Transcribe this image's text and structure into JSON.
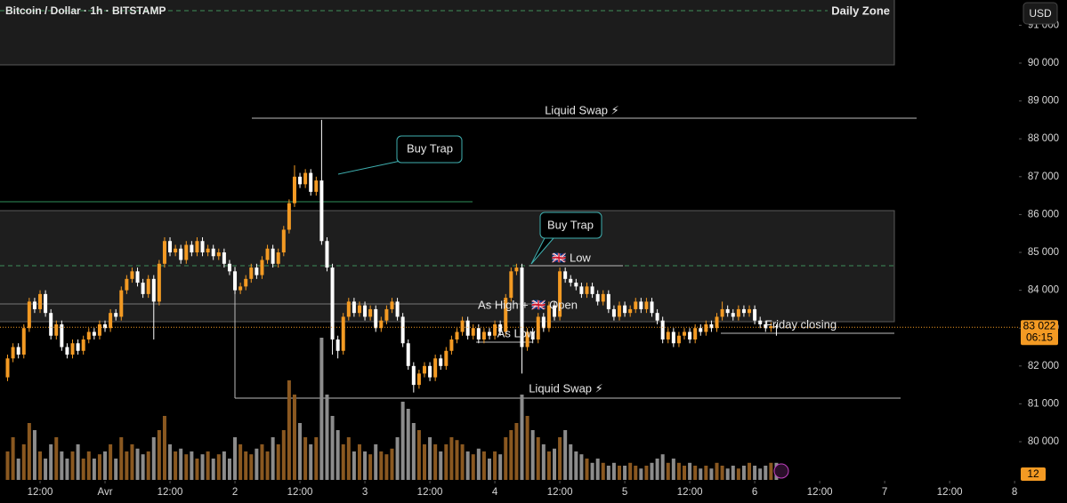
{
  "chart_data": {
    "type": "candlestick",
    "title": "Bitcoin / Dollar · 1h · BITSTAMP",
    "currency": "USD",
    "up_color": "#f39a23",
    "down_color": "#ffffff",
    "volume_up_color": "#8a5820",
    "volume_down_color": "#8c8c8c",
    "xlim": [
      -19.4,
      168.8
    ],
    "ylim": [
      78991,
      91667
    ],
    "volume_lim": [
      0,
      100
    ],
    "xticks": [
      {
        "value": -12,
        "label": "12:00"
      },
      {
        "value": 0,
        "label": "Avr"
      },
      {
        "value": 12,
        "label": "12:00"
      },
      {
        "value": 24,
        "label": "2"
      },
      {
        "value": 36,
        "label": "12:00"
      },
      {
        "value": 48,
        "label": "3"
      },
      {
        "value": 60,
        "label": "12:00"
      },
      {
        "value": 72,
        "label": "4"
      },
      {
        "value": 84,
        "label": "12:00"
      },
      {
        "value": 96,
        "label": "5"
      },
      {
        "value": 108,
        "label": "12:00"
      },
      {
        "value": 120,
        "label": "6"
      },
      {
        "value": 132,
        "label": "12:00"
      },
      {
        "value": 144,
        "label": "7"
      },
      {
        "value": 156,
        "label": "12:00"
      },
      {
        "value": 168,
        "label": "8"
      }
    ],
    "yticks": [
      {
        "value": 80000,
        "label": "80 000"
      },
      {
        "value": 81000,
        "label": "81 000"
      },
      {
        "value": 82000,
        "label": "82 000"
      },
      {
        "value": 83000,
        "label": "83 000"
      },
      {
        "value": 84000,
        "label": "84 000"
      },
      {
        "value": 85000,
        "label": "85 000"
      },
      {
        "value": 86000,
        "label": "86 000"
      },
      {
        "value": 87000,
        "label": "87 000"
      },
      {
        "value": 88000,
        "label": "88 000"
      },
      {
        "value": 89000,
        "label": "89 000"
      },
      {
        "value": 90000,
        "label": "90 000"
      },
      {
        "value": 91000,
        "label": "91 000"
      }
    ],
    "last_price_label": "83 022",
    "countdown": "06:15",
    "annotations": [
      "Daily Zone",
      "Liquid Swap ⚡",
      "Buy Trap",
      "Buy Trap",
      "🇬🇧 Low",
      "As High + 🇬🇧 Open",
      "As Low",
      "Liquid Swap ⚡",
      "Friday closing"
    ],
    "x": [
      -18,
      -17,
      -16,
      -15,
      -14,
      -13,
      -12,
      -11,
      -10,
      -9,
      -8,
      -7,
      -6,
      -5,
      -4,
      -3,
      -2,
      -1,
      0,
      1,
      2,
      3,
      4,
      5,
      6,
      7,
      8,
      9,
      10,
      11,
      12,
      13,
      14,
      15,
      16,
      17,
      18,
      19,
      20,
      21,
      22,
      23,
      24,
      25,
      26,
      27,
      28,
      29,
      30,
      31,
      32,
      33,
      34,
      35,
      36,
      37,
      38,
      39,
      40,
      41,
      42,
      43,
      44,
      45,
      46,
      47,
      48,
      49,
      50,
      51,
      52,
      53,
      54,
      55,
      56,
      57,
      58,
      59,
      60,
      61,
      62,
      63,
      64,
      65,
      66,
      67,
      68,
      69,
      70,
      71,
      72,
      73,
      74,
      75,
      76,
      77,
      78,
      79,
      80,
      81,
      82,
      83,
      84,
      85,
      86,
      87,
      88,
      89,
      90,
      91,
      92,
      93,
      94,
      95,
      96,
      97,
      98,
      99,
      100,
      101,
      102,
      103,
      104,
      105,
      106,
      107,
      108,
      109,
      110,
      111,
      112,
      113,
      114,
      115,
      116,
      117,
      118,
      119,
      120,
      121,
      122,
      123,
      124
    ],
    "ohlc": [
      [
        81700,
        82300,
        81600,
        82200
      ],
      [
        82200,
        82600,
        82100,
        82500
      ],
      [
        82500,
        82600,
        82200,
        82300
      ],
      [
        82300,
        83100,
        82200,
        83000
      ],
      [
        83000,
        83800,
        82900,
        83700
      ],
      [
        83700,
        83800,
        83400,
        83500
      ],
      [
        83500,
        84000,
        83400,
        83900
      ],
      [
        83900,
        84000,
        83300,
        83400
      ],
      [
        83400,
        83500,
        82700,
        82800
      ],
      [
        82800,
        83200,
        82700,
        83100
      ],
      [
        83100,
        83200,
        82400,
        82500
      ],
      [
        82500,
        82600,
        82200,
        82300
      ],
      [
        82300,
        82700,
        82200,
        82600
      ],
      [
        82600,
        82700,
        82300,
        82400
      ],
      [
        82400,
        82800,
        82300,
        82700
      ],
      [
        82700,
        83000,
        82600,
        82900
      ],
      [
        82900,
        83000,
        82700,
        82800
      ],
      [
        82800,
        83200,
        82700,
        83100
      ],
      [
        83100,
        83200,
        82900,
        83000
      ],
      [
        83000,
        83500,
        82900,
        83400
      ],
      [
        83400,
        83500,
        83200,
        83300
      ],
      [
        83300,
        84100,
        83200,
        84000
      ],
      [
        84000,
        84400,
        83900,
        84300
      ],
      [
        84300,
        84600,
        84200,
        84500
      ],
      [
        84500,
        84600,
        84100,
        84200
      ],
      [
        84200,
        84300,
        83800,
        83900
      ],
      [
        83900,
        84400,
        83800,
        84300
      ],
      [
        84300,
        84400,
        82700,
        83700
      ],
      [
        83700,
        84800,
        83600,
        84700
      ],
      [
        84700,
        85400,
        84600,
        85300
      ],
      [
        85300,
        85400,
        84900,
        85000
      ],
      [
        85000,
        85200,
        84900,
        85100
      ],
      [
        85100,
        85200,
        84700,
        84800
      ],
      [
        84800,
        85300,
        84700,
        85200
      ],
      [
        85200,
        85300,
        84900,
        85000
      ],
      [
        85000,
        85400,
        84900,
        85300
      ],
      [
        85300,
        85400,
        84900,
        85000
      ],
      [
        85000,
        85200,
        84900,
        85100
      ],
      [
        85100,
        85200,
        84800,
        84900
      ],
      [
        84900,
        85100,
        84800,
        85000
      ],
      [
        85000,
        85100,
        84600,
        84700
      ],
      [
        84700,
        84800,
        84400,
        84500
      ],
      [
        84500,
        84600,
        83900,
        84000
      ],
      [
        84000,
        84200,
        83900,
        84100
      ],
      [
        84100,
        84400,
        84000,
        84300
      ],
      [
        84300,
        84700,
        84200,
        84600
      ],
      [
        84600,
        84700,
        84300,
        84400
      ],
      [
        84400,
        84900,
        84300,
        84800
      ],
      [
        84800,
        85200,
        84700,
        85100
      ],
      [
        85100,
        85200,
        84600,
        84700
      ],
      [
        84700,
        85100,
        84600,
        85000
      ],
      [
        85000,
        85700,
        84900,
        85600
      ],
      [
        85600,
        86400,
        85500,
        86300
      ],
      [
        86300,
        87300,
        86200,
        87000
      ],
      [
        87000,
        87100,
        86700,
        86800
      ],
      [
        86800,
        87200,
        86700,
        87100
      ],
      [
        87100,
        87200,
        86500,
        86600
      ],
      [
        86600,
        87000,
        86500,
        86900
      ],
      [
        86900,
        88500,
        85200,
        85300
      ],
      [
        85300,
        85400,
        84500,
        84600
      ],
      [
        84600,
        84700,
        82300,
        82700
      ],
      [
        82700,
        82800,
        82200,
        82400
      ],
      [
        82400,
        83400,
        82300,
        83300
      ],
      [
        83300,
        83800,
        83200,
        83700
      ],
      [
        83700,
        83800,
        83300,
        83400
      ],
      [
        83400,
        83700,
        83300,
        83600
      ],
      [
        83600,
        83700,
        83200,
        83300
      ],
      [
        83300,
        83600,
        83200,
        83500
      ],
      [
        83500,
        83600,
        82900,
        83000
      ],
      [
        83000,
        83300,
        82900,
        83200
      ],
      [
        83200,
        83600,
        83100,
        83500
      ],
      [
        83500,
        83800,
        83400,
        83700
      ],
      [
        83700,
        83800,
        83200,
        83300
      ],
      [
        83300,
        83400,
        82500,
        82600
      ],
      [
        82600,
        82700,
        81900,
        82000
      ],
      [
        82000,
        82100,
        81300,
        81500
      ],
      [
        81500,
        81900,
        81400,
        81800
      ],
      [
        81800,
        82100,
        81700,
        82000
      ],
      [
        82000,
        82100,
        81600,
        81700
      ],
      [
        81700,
        82300,
        81600,
        82200
      ],
      [
        82200,
        82300,
        81900,
        82000
      ],
      [
        82000,
        82500,
        81900,
        82400
      ],
      [
        82400,
        82800,
        82300,
        82700
      ],
      [
        82700,
        83000,
        82600,
        82900
      ],
      [
        82900,
        83300,
        82800,
        83200
      ],
      [
        83200,
        83300,
        82700,
        82800
      ],
      [
        82800,
        83100,
        82700,
        83000
      ],
      [
        83000,
        83100,
        82600,
        82700
      ],
      [
        82700,
        83000,
        82600,
        82900
      ],
      [
        82900,
        83000,
        82700,
        82800
      ],
      [
        82800,
        83200,
        82700,
        83100
      ],
      [
        83100,
        83200,
        82800,
        82900
      ],
      [
        82900,
        83900,
        82800,
        83800
      ],
      [
        83800,
        84600,
        83700,
        84500
      ],
      [
        84500,
        84700,
        84400,
        84600
      ],
      [
        84600,
        84700,
        81800,
        82500
      ],
      [
        82500,
        83000,
        82400,
        82900
      ],
      [
        82900,
        83000,
        82600,
        82700
      ],
      [
        82700,
        83400,
        82600,
        83300
      ],
      [
        83300,
        83400,
        82900,
        83000
      ],
      [
        83000,
        83700,
        82900,
        83600
      ],
      [
        83600,
        83700,
        83200,
        83300
      ],
      [
        83300,
        84600,
        83200,
        84500
      ],
      [
        84500,
        84600,
        84200,
        84300
      ],
      [
        84300,
        84400,
        84100,
        84200
      ],
      [
        84200,
        84300,
        84000,
        84100
      ],
      [
        84100,
        84200,
        83800,
        83900
      ],
      [
        83900,
        84200,
        83800,
        84100
      ],
      [
        84100,
        84200,
        83800,
        83900
      ],
      [
        83900,
        84000,
        83600,
        83700
      ],
      [
        83700,
        84000,
        83600,
        83900
      ],
      [
        83900,
        84000,
        83400,
        83500
      ],
      [
        83500,
        83600,
        83200,
        83300
      ],
      [
        83300,
        83700,
        83200,
        83600
      ],
      [
        83600,
        83700,
        83300,
        83400
      ],
      [
        83400,
        83600,
        83300,
        83500
      ],
      [
        83500,
        83800,
        83400,
        83700
      ],
      [
        83700,
        83800,
        83400,
        83500
      ],
      [
        83500,
        83800,
        83400,
        83700
      ],
      [
        83700,
        83800,
        83300,
        83400
      ],
      [
        83400,
        83500,
        83100,
        83200
      ],
      [
        83200,
        83300,
        82600,
        82700
      ],
      [
        82700,
        83000,
        82600,
        82900
      ],
      [
        82900,
        83000,
        82500,
        82600
      ],
      [
        82600,
        82900,
        82500,
        82800
      ],
      [
        82800,
        83000,
        82700,
        82900
      ],
      [
        82900,
        83000,
        82600,
        82700
      ],
      [
        82700,
        83100,
        82600,
        83000
      ],
      [
        83000,
        83100,
        82800,
        82900
      ],
      [
        82900,
        83200,
        82800,
        83100
      ],
      [
        83100,
        83200,
        82900,
        83000
      ],
      [
        83000,
        83400,
        82900,
        83300
      ],
      [
        83300,
        83700,
        83200,
        83500
      ],
      [
        83500,
        83600,
        83300,
        83400
      ],
      [
        83400,
        83500,
        83200,
        83300
      ],
      [
        83300,
        83600,
        83200,
        83500
      ],
      [
        83500,
        83600,
        83300,
        83400
      ],
      [
        83400,
        83600,
        83300,
        83500
      ],
      [
        83500,
        83600,
        83100,
        83200
      ],
      [
        83200,
        83300,
        83000,
        83100
      ],
      [
        83100,
        83200,
        82900,
        83000
      ],
      [
        83000,
        83150,
        82900,
        83050
      ],
      [
        83050,
        83100,
        82800,
        83022
      ]
    ],
    "volume": [
      20,
      30,
      15,
      25,
      40,
      35,
      20,
      15,
      25,
      30,
      20,
      15,
      20,
      25,
      15,
      20,
      15,
      18,
      20,
      25,
      15,
      30,
      20,
      25,
      22,
      18,
      20,
      30,
      35,
      45,
      25,
      20,
      22,
      18,
      20,
      15,
      18,
      20,
      15,
      18,
      20,
      15,
      30,
      25,
      20,
      18,
      22,
      25,
      20,
      30,
      25,
      35,
      70,
      60,
      40,
      30,
      25,
      30,
      100,
      60,
      45,
      35,
      25,
      30,
      20,
      25,
      20,
      18,
      25,
      20,
      18,
      22,
      30,
      55,
      50,
      40,
      35,
      25,
      30,
      25,
      20,
      25,
      30,
      28,
      25,
      20,
      18,
      22,
      20,
      15,
      20,
      18,
      30,
      35,
      40,
      60,
      45,
      35,
      30,
      25,
      20,
      22,
      30,
      35,
      25,
      20,
      18,
      15,
      12,
      15,
      12,
      10,
      12,
      10,
      10,
      12,
      10,
      8,
      10,
      12,
      15,
      18,
      12,
      15,
      12,
      10,
      12,
      10,
      8,
      10,
      8,
      12,
      10,
      8,
      10,
      8,
      10,
      12,
      10,
      8,
      10,
      12,
      12
    ]
  }
}
